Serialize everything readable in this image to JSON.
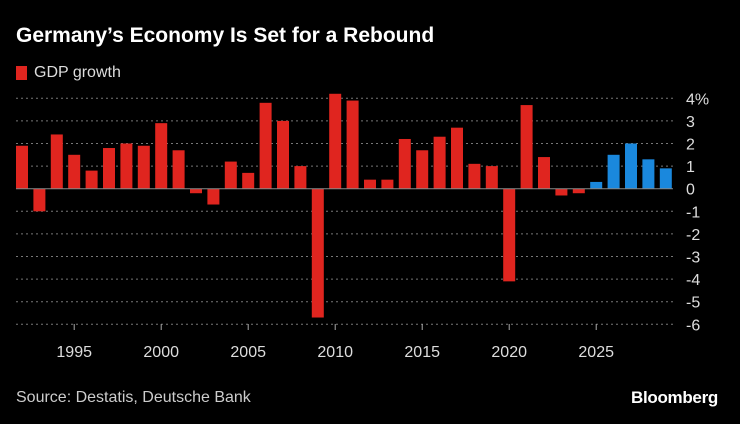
{
  "chart_data": {
    "type": "bar",
    "title": "Germany’s Economy Is Set for a Rebound",
    "legend": [
      "GDP growth"
    ],
    "source": "Source: Destatis, Deutsche Bank",
    "brand": "Bloomberg",
    "x": [
      1992,
      1993,
      1994,
      1995,
      1996,
      1997,
      1998,
      1999,
      2000,
      2001,
      2002,
      2003,
      2004,
      2005,
      2006,
      2007,
      2008,
      2009,
      2010,
      2011,
      2012,
      2013,
      2014,
      2015,
      2016,
      2017,
      2018,
      2019,
      2020,
      2021,
      2022,
      2023,
      2024,
      2025,
      2026,
      2027,
      2028,
      2029
    ],
    "values": [
      1.9,
      -1.0,
      2.4,
      1.5,
      0.8,
      1.8,
      2.0,
      1.9,
      2.9,
      1.7,
      -0.2,
      -0.7,
      1.2,
      0.7,
      3.8,
      3.0,
      1.0,
      -5.7,
      4.2,
      3.9,
      0.4,
      0.4,
      2.2,
      1.7,
      2.3,
      2.7,
      1.1,
      1.0,
      -4.1,
      3.7,
      1.4,
      -0.3,
      -0.2,
      0.3,
      1.5,
      2.0,
      1.3,
      0.9
    ],
    "forecast_from": 2025,
    "colors": {
      "actual": "#e0251f",
      "forecast": "#1a88dd"
    },
    "xticks": [
      1995,
      2000,
      2005,
      2010,
      2015,
      2020,
      2025
    ],
    "yticks": [
      "4%",
      "3",
      "2",
      "1",
      "0",
      "-1",
      "-2",
      "-3",
      "-4",
      "-5",
      "-6"
    ],
    "ylim": [
      -6,
      4
    ],
    "grid": true
  }
}
